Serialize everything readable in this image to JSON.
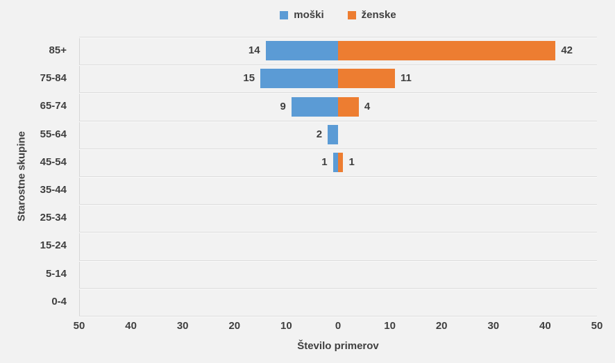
{
  "chart_data": {
    "type": "bar",
    "variant": "population-pyramid",
    "title": "",
    "xlabel": "Število primerov",
    "ylabel": "Starostne skupine",
    "categories": [
      "85+",
      "75-84",
      "65-74",
      "55-64",
      "45-54",
      "35-44",
      "25-34",
      "15-24",
      "5-14",
      "0-4"
    ],
    "series": [
      {
        "name": "moški",
        "side": "left",
        "color": "#5b9bd5",
        "values": [
          14,
          15,
          9,
          2,
          1,
          0,
          0,
          0,
          0,
          0
        ]
      },
      {
        "name": "ženske",
        "side": "right",
        "color": "#ed7d31",
        "values": [
          42,
          11,
          4,
          0,
          1,
          0,
          0,
          0,
          0,
          0
        ]
      }
    ],
    "x_tick_labels": [
      "50",
      "40",
      "30",
      "20",
      "10",
      "0",
      "10",
      "20",
      "30",
      "40",
      "50"
    ],
    "xlim_each_side": [
      0,
      50
    ],
    "grid": "horizontal-only",
    "legend_position": "top-center",
    "data_labels": "outside-end, hidden when value is 0"
  },
  "colors": {
    "background": "#f2f2f2",
    "text": "#3f3f3f",
    "gridline": "#dcdcdc",
    "axis_line": "#d6d6d6",
    "male": "#5b9bd5",
    "female": "#ed7d31"
  }
}
